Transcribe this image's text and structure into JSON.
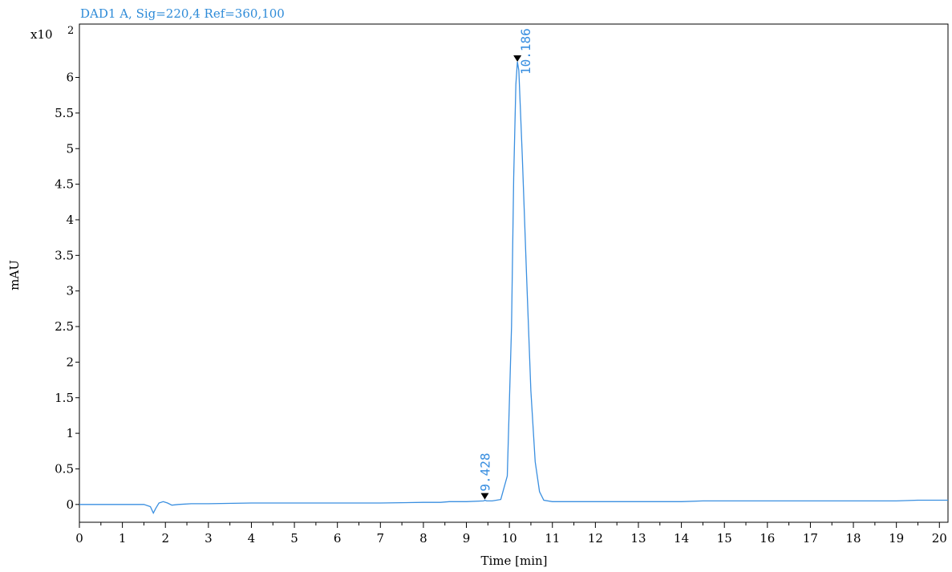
{
  "chart_data": {
    "type": "line",
    "title": "DAD1 A, Sig=220,4 Ref=360,100",
    "xlabel": "Time [min]",
    "ylabel": "mAU",
    "y_multiplier_label": "x10",
    "y_multiplier_exponent": "2",
    "xlim": [
      0,
      20.2
    ],
    "ylim": [
      -0.25,
      6.75
    ],
    "x_ticks": [
      0,
      1,
      2,
      3,
      4,
      5,
      6,
      7,
      8,
      9,
      10,
      11,
      12,
      13,
      14,
      15,
      16,
      17,
      18,
      19,
      20
    ],
    "y_ticks": [
      0,
      0.5,
      1,
      1.5,
      2,
      2.5,
      3,
      3.5,
      4,
      4.5,
      5,
      5.5,
      6
    ],
    "y_tick_labels": [
      "0",
      "0.5",
      "1",
      "1.5",
      "2",
      "2.5",
      "3",
      "3.5",
      "4",
      "4.5",
      "5",
      "5.5",
      "6"
    ],
    "grid": false,
    "colors": {
      "trace": "#3a8fe0",
      "marker": "#000000",
      "axis": "#000000"
    },
    "series": [
      {
        "x": [
          0,
          1.5,
          1.65,
          1.72,
          1.78,
          1.85,
          1.95,
          2.05,
          2.15,
          2.3,
          2.6,
          3,
          4,
          5,
          5.6,
          6,
          7,
          8,
          8.4,
          8.6,
          9,
          9.4,
          9.43,
          9.47,
          9.6,
          9.8,
          9.95,
          10.05,
          10.1,
          10.15,
          10.186,
          10.22,
          10.3,
          10.4,
          10.5,
          10.6,
          10.7,
          10.8,
          11,
          12,
          13,
          14,
          14.5,
          15,
          16,
          17,
          18,
          19,
          19.5,
          20,
          20.2
        ],
        "y": [
          0,
          0,
          -0.03,
          -0.12,
          -0.05,
          0.02,
          0.04,
          0.02,
          -0.01,
          0,
          0.01,
          0.01,
          0.02,
          0.02,
          0.02,
          0.02,
          0.02,
          0.03,
          0.03,
          0.04,
          0.04,
          0.05,
          0.06,
          0.05,
          0.05,
          0.07,
          0.4,
          2.5,
          4.6,
          5.9,
          6.22,
          6.1,
          4.9,
          3.2,
          1.6,
          0.6,
          0.18,
          0.06,
          0.04,
          0.04,
          0.04,
          0.04,
          0.05,
          0.05,
          0.05,
          0.05,
          0.05,
          0.05,
          0.06,
          0.06,
          0.06
        ]
      }
    ],
    "peaks": [
      {
        "rt": 9.428,
        "label": "9.428",
        "height": 0.07
      },
      {
        "rt": 10.186,
        "label": "10.186",
        "height": 6.22
      }
    ]
  }
}
